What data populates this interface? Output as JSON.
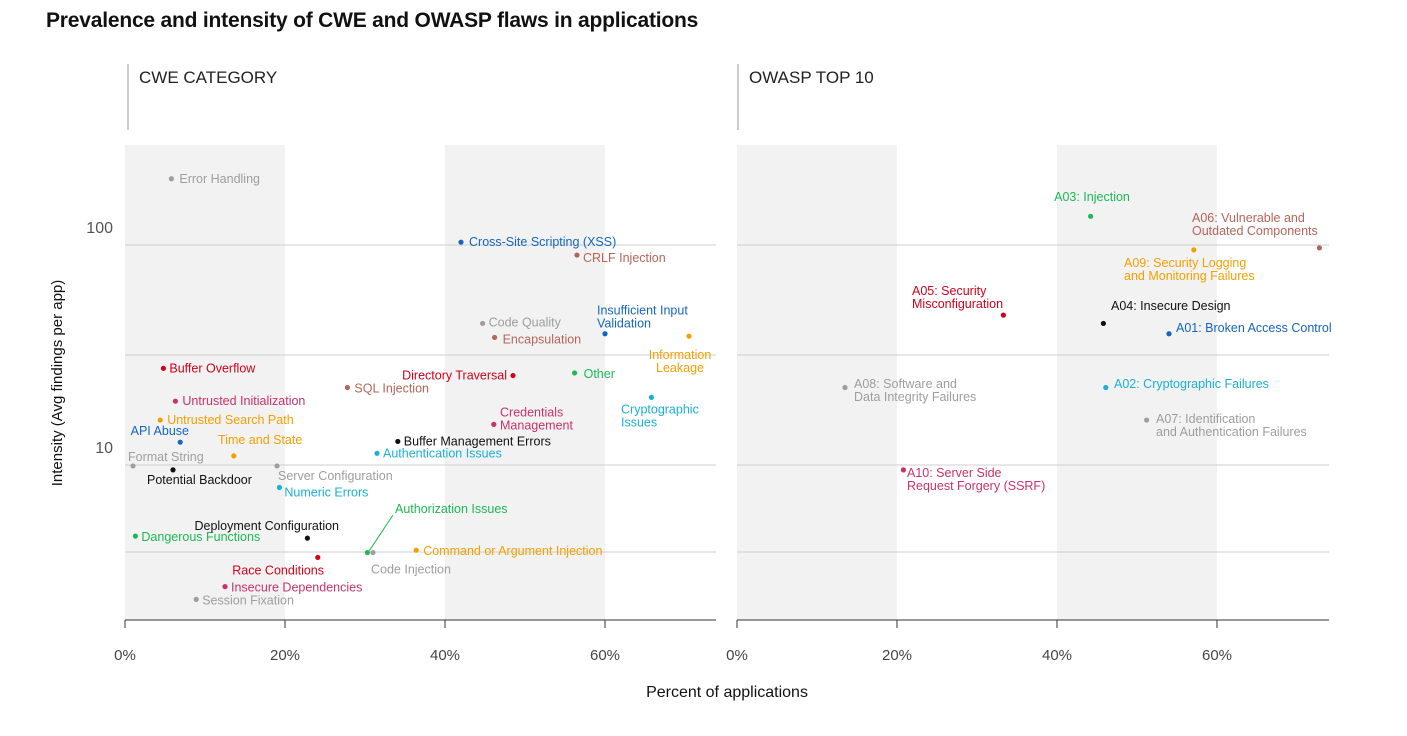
{
  "title": "Prevalence and intensity of CWE and OWASP flaws in applications",
  "colors": {
    "green": "#1db954",
    "blue": "#1565c0",
    "red": "#d0021b",
    "gray": "#9e9e9e",
    "brown": "#b5655a",
    "orange": "#f5a000",
    "cyan": "#1ab0d8",
    "pink": "#c8336a",
    "black": "#111111"
  },
  "chart_data": [
    {
      "type": "scatter",
      "panel_title": "CWE CATEGORY",
      "xlabel": "Percent of applications",
      "ylabel": "Intensity (Avg findings per app)",
      "x_scale": "linear",
      "y_scale": "log",
      "xlim": [
        0,
        74
      ],
      "ylim": [
        1.3,
        280
      ],
      "x_ticks": [
        "0%",
        "20%",
        "40%",
        "60%"
      ],
      "y_tick_labels": [
        "100",
        "10"
      ],
      "points": [
        {
          "label": "Error Handling",
          "x": 5.8,
          "y": 200,
          "color": "gray"
        },
        {
          "label": "Cross-Site Scripting (XSS)",
          "x": 42,
          "y": 103,
          "color": "blue"
        },
        {
          "label": "CRLF Injection",
          "x": 56.5,
          "y": 90,
          "color": "brown"
        },
        {
          "label": "Code Quality",
          "x": 44.7,
          "y": 44,
          "color": "gray"
        },
        {
          "label": "Encapsulation",
          "x": 46.2,
          "y": 38,
          "color": "brown"
        },
        {
          "label": "Insufficient Input Validation",
          "x": 60,
          "y": 39.5,
          "color": "blue"
        },
        {
          "label": "Information Leakage",
          "x": 70.5,
          "y": 38.5,
          "color": "orange"
        },
        {
          "label": "Buffer Overflow",
          "x": 4.8,
          "y": 27.5,
          "color": "red"
        },
        {
          "label": "Directory Traversal",
          "x": 48.5,
          "y": 25.5,
          "color": "red"
        },
        {
          "label": "Other",
          "x": 56.2,
          "y": 26.2,
          "color": "green"
        },
        {
          "label": "SQL Injection",
          "x": 27.8,
          "y": 22.5,
          "color": "brown"
        },
        {
          "label": "Untrusted Initialization",
          "x": 6.3,
          "y": 19.5,
          "color": "pink"
        },
        {
          "label": "Cryptographic Issues",
          "x": 65.8,
          "y": 20.3,
          "color": "cyan"
        },
        {
          "label": "Credentials Management",
          "x": 46.1,
          "y": 15.3,
          "color": "pink"
        },
        {
          "label": "Untrusted Search Path",
          "x": 4.4,
          "y": 16,
          "color": "orange"
        },
        {
          "label": "API Abuse",
          "x": 6.9,
          "y": 12.7,
          "color": "blue"
        },
        {
          "label": "Buffer Management Errors",
          "x": 34.1,
          "y": 12.8,
          "color": "black"
        },
        {
          "label": "Format String",
          "x": 1,
          "y": 9.9,
          "color": "gray"
        },
        {
          "label": "Time and State",
          "x": 13.6,
          "y": 11,
          "color": "orange"
        },
        {
          "label": "Authentication Issues",
          "x": 31.5,
          "y": 11.3,
          "color": "cyan"
        },
        {
          "label": "Potential Backdoor",
          "x": 6,
          "y": 9.5,
          "color": "black"
        },
        {
          "label": "Server Configuration",
          "x": 19,
          "y": 9.9,
          "color": "gray"
        },
        {
          "label": "Numeric Errors",
          "x": 19.3,
          "y": 7.9,
          "color": "cyan"
        },
        {
          "label": "Dangerous Functions",
          "x": 1.3,
          "y": 4.75,
          "color": "green"
        },
        {
          "label": "Deployment Configuration",
          "x": 22.8,
          "y": 4.65,
          "color": "black"
        },
        {
          "label": "Authorization Issues",
          "x": 30.3,
          "y": 4.0,
          "color": "green"
        },
        {
          "label": "Code Injection",
          "x": 31,
          "y": 4.0,
          "color": "gray"
        },
        {
          "label": "Command or Argument Injection",
          "x": 36.4,
          "y": 4.1,
          "color": "orange"
        },
        {
          "label": "Race Conditions",
          "x": 24.1,
          "y": 3.8,
          "color": "red"
        },
        {
          "label": "Insecure Dependencies",
          "x": 12.5,
          "y": 2.8,
          "color": "pink"
        },
        {
          "label": "Session Fixation",
          "x": 8.9,
          "y": 2.45,
          "color": "gray"
        }
      ]
    },
    {
      "type": "scatter",
      "panel_title": "OWASP TOP 10",
      "xlabel": "Percent of applications",
      "ylabel": "Intensity (Avg findings per app)",
      "x_scale": "linear",
      "y_scale": "log",
      "xlim": [
        0,
        74
      ],
      "ylim": [
        1.3,
        280
      ],
      "x_ticks": [
        "0%",
        "20%",
        "40%",
        "60%"
      ],
      "points": [
        {
          "label": "A03: Injection",
          "x": 44.2,
          "y": 135,
          "color": "green"
        },
        {
          "label": "A06: Vulnerable and Outdated Components",
          "x": 72.8,
          "y": 97,
          "color": "brown"
        },
        {
          "label": "A09: Security Logging and Monitoring Failures",
          "x": 57.1,
          "y": 95,
          "color": "orange"
        },
        {
          "label": "A05: Security Misconfiguration",
          "x": 33.3,
          "y": 48,
          "color": "red"
        },
        {
          "label": "A04: Insecure Design",
          "x": 45.8,
          "y": 44,
          "color": "black"
        },
        {
          "label": "A01: Broken Access Control",
          "x": 54,
          "y": 39.5,
          "color": "blue"
        },
        {
          "label": "A08: Software and Data Integrity Failures",
          "x": 13.5,
          "y": 22.5,
          "color": "gray"
        },
        {
          "label": "A02: Cryptographic Failures",
          "x": 46.1,
          "y": 22.5,
          "color": "cyan"
        },
        {
          "label": "A07: Identification and Authentication Failures",
          "x": 51.2,
          "y": 16,
          "color": "gray"
        },
        {
          "label": "A10: Server Side Request Forgery (SSRF)",
          "x": 20.8,
          "y": 9.5,
          "color": "pink"
        }
      ]
    }
  ],
  "shared": {
    "y_axis_title": "Intensity (Avg findings per app)",
    "x_axis_title": "Percent of applications"
  }
}
